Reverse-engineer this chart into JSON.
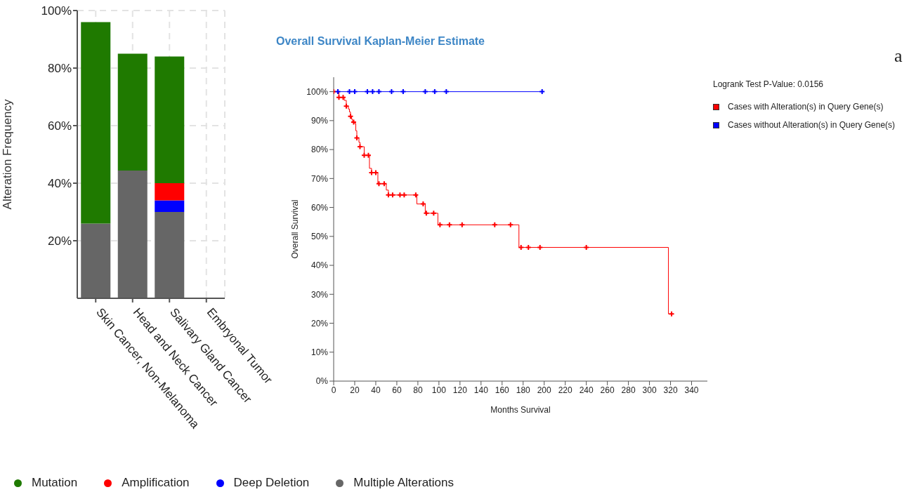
{
  "chart_data": [
    {
      "type": "bar",
      "stacked": true,
      "ylabel": "Alteration Frequency",
      "categories": [
        "Skin Cancer, Non-Melanoma",
        "Head and Neck Cancer",
        "Salivary Gland Cancer",
        "Embryonal Tumor"
      ],
      "series": [
        {
          "name": "Multiple Alterations",
          "color": "#666666",
          "values": [
            26,
            44.4,
            30,
            0
          ]
        },
        {
          "name": "Deep Deletion",
          "color": "#0000ff",
          "values": [
            0,
            0,
            4,
            0
          ]
        },
        {
          "name": "Amplification",
          "color": "#ff0000",
          "values": [
            0,
            0,
            6,
            0
          ]
        },
        {
          "name": "Mutation",
          "color": "#1f7a00",
          "values": [
            70,
            40.6,
            44,
            0
          ]
        }
      ],
      "ylim": [
        0,
        100
      ],
      "yticks": [
        {
          "value": 20,
          "label": "20%"
        },
        {
          "value": 40,
          "label": "40%"
        },
        {
          "value": 60,
          "label": "60%"
        },
        {
          "value": 80,
          "label": "80%"
        },
        {
          "value": 100,
          "label": "100%"
        }
      ],
      "grid": true,
      "legend": "bottom"
    },
    {
      "type": "step",
      "title": "Overall Survival Kaplan-Meier Estimate",
      "xlabel": "Months Survival",
      "ylabel": "Overall Survival",
      "annotations": [
        "Logrank Test P-Value: 0.0156",
        "a"
      ],
      "series": [
        {
          "name": "Cases with Alteration(s) in Query Gene(s)",
          "color": "#ff0000",
          "marker": "none",
          "x": [
            0,
            5,
            5,
            10,
            10,
            12,
            12,
            14,
            14,
            15,
            15,
            16,
            16,
            17,
            17,
            18,
            18,
            20,
            20,
            21,
            21,
            22,
            22,
            24,
            24,
            25,
            25,
            29,
            29,
            34,
            34,
            36,
            36,
            42,
            42,
            50,
            50,
            52,
            52,
            79,
            79,
            87,
            87,
            99,
            99,
            176,
            176,
            318,
            318,
            321
          ],
          "values": [
            100,
            100,
            98,
            98,
            97,
            97,
            95,
            95,
            94,
            94,
            93,
            93,
            91.5,
            91.5,
            90.5,
            90.5,
            89.5,
            89.5,
            89,
            89,
            86.5,
            86.5,
            84,
            84,
            82.5,
            82.5,
            81,
            81,
            78,
            78,
            73.5,
            73.5,
            72,
            72,
            68.2,
            68.2,
            66,
            66,
            64.3,
            64.3,
            61.2,
            61.2,
            58,
            58,
            54,
            54,
            46.2,
            46.2,
            23.2,
            23.2
          ]
        },
        {
          "name": "Cases without Alteration(s) in Query Gene(s)",
          "color": "#0000ff",
          "marker": "none",
          "x": [
            0,
            198
          ],
          "values": [
            100,
            100
          ]
        },
        {
          "type": "scatter",
          "color": "#ff0000",
          "marker": "cross",
          "x": [
            0,
            5,
            9,
            12,
            16,
            19,
            22,
            25,
            29,
            33,
            36,
            40,
            43,
            48,
            52,
            56,
            63,
            67,
            78,
            85,
            88,
            95,
            101,
            110,
            122,
            153,
            168,
            178,
            185,
            196,
            240,
            321
          ],
          "values": [
            100,
            98,
            98,
            95,
            91.5,
            89.5,
            84,
            81,
            78,
            78,
            72,
            72,
            68.2,
            68.2,
            64.3,
            64.3,
            64.3,
            64.3,
            64.3,
            61.2,
            58,
            58,
            54,
            54,
            54,
            54,
            54,
            46.2,
            46.2,
            46.2,
            46.2,
            23.2
          ]
        },
        {
          "type": "scatter",
          "color": "#0000ff",
          "marker": "cross",
          "x": [
            4,
            15,
            20,
            32,
            37,
            43,
            55,
            66,
            87,
            96,
            107,
            198
          ],
          "values": [
            100,
            100,
            100,
            100,
            100,
            100,
            100,
            100,
            100,
            100,
            100,
            100
          ]
        }
      ],
      "xlim": [
        0,
        355
      ],
      "xticks": [
        0,
        20,
        40,
        60,
        80,
        100,
        120,
        140,
        160,
        180,
        200,
        220,
        240,
        260,
        280,
        300,
        320,
        340
      ],
      "ylim": [
        0,
        105
      ],
      "yticks": [
        {
          "value": 0,
          "label": "0%"
        },
        {
          "value": 10,
          "label": "10%"
        },
        {
          "value": 20,
          "label": "20%"
        },
        {
          "value": 30,
          "label": "30%"
        },
        {
          "value": 40,
          "label": "40%"
        },
        {
          "value": 50,
          "label": "50%"
        },
        {
          "value": 60,
          "label": "60%"
        },
        {
          "value": 70,
          "label": "70%"
        },
        {
          "value": 80,
          "label": "80%"
        },
        {
          "value": 90,
          "label": "90%"
        },
        {
          "value": 100,
          "label": "100%"
        }
      ],
      "grid": false,
      "legend": "right"
    }
  ]
}
